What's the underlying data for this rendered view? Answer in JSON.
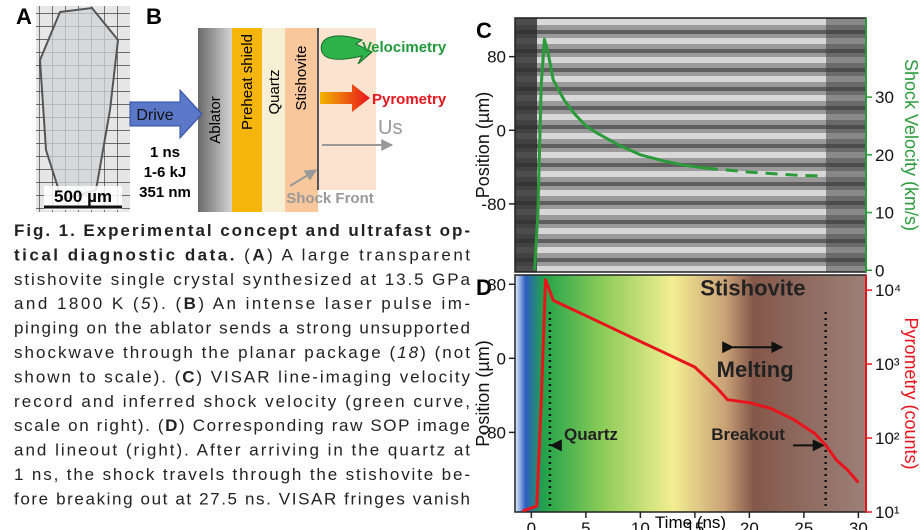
{
  "panel_a": {
    "label": "A",
    "scale_bar": "500 µm"
  },
  "panel_b": {
    "label": "B",
    "drive": "Drive",
    "drive_params": [
      "1 ns",
      "1-6 kJ",
      "351 nm"
    ],
    "layers": [
      "Ablator",
      "Preheat shield",
      "Quartz",
      "Stishovite"
    ],
    "velocimetry": "Velocimetry",
    "pyrometry": "Pyrometry",
    "us": "Us",
    "shock_front": "Shock Front"
  },
  "caption": {
    "lines": [
      [
        {
          "b": "Fig. 1. Experimental concept and ultrafast op-"
        }
      ],
      [
        {
          "b": "tical diagnostic data."
        },
        " (",
        {
          "b": "A"
        },
        ") A large transparent"
      ],
      [
        "stishovite single crystal synthesized at 13.5 GPa"
      ],
      [
        "and 1800 K (",
        {
          "i": "5"
        },
        "). (",
        {
          "b": "B"
        },
        ") An intense laser pulse im-"
      ],
      [
        "pinging on the ablator sends a strong unsupported"
      ],
      [
        "shockwave through the planar package (",
        {
          "i": "18"
        },
        ") (not"
      ],
      [
        "shown to scale). (",
        {
          "b": "C"
        },
        ") VISAR line-imaging velocity"
      ],
      [
        "record and inferred shock velocity (green curve,"
      ],
      [
        "scale on right). (",
        {
          "b": "D"
        },
        ") Corresponding raw SOP image"
      ],
      [
        "and lineout (right). After arriving in the quartz at"
      ],
      [
        "1 ns, the shock travels through the stishovite be-"
      ],
      [
        "fore breaking out at 27.5 ns. VISAR fringes vanish"
      ]
    ]
  },
  "chart_data": [
    {
      "type": "line",
      "panel": "C",
      "ylabel": "Position (µm)",
      "y2label": "Shock Velocity (km/s)",
      "xlim": [
        -1.5,
        30.7
      ],
      "ylim": [
        -154,
        122
      ],
      "yticks": [
        -80,
        0,
        80
      ],
      "y2lim": [
        -0.3,
        43.7
      ],
      "y2ticks": [
        0,
        10,
        20,
        30
      ],
      "y2color": "#2a9a3a",
      "series": [
        {
          "color": "#2a9a3a",
          "axis": "y2",
          "x": [
            0.3,
            0.6,
            0.9,
            1.2,
            1.5,
            2,
            3,
            4,
            5,
            6,
            8,
            10,
            12,
            14,
            16
          ],
          "values": [
            0,
            10,
            32,
            40,
            38,
            33,
            29.5,
            27,
            25,
            23.8,
            21.7,
            20,
            19,
            18.2,
            17.7
          ]
        },
        {
          "color": "#2a9a3a",
          "axis": "y2",
          "dashed": true,
          "x": [
            16,
            20,
            24,
            27
          ],
          "values": [
            17.7,
            17,
            16.5,
            16.3
          ]
        }
      ]
    },
    {
      "type": "line",
      "panel": "D",
      "ylabel": "Position (µm)",
      "y2label": "Pyrometry (counts)",
      "xlabel": "Time (ns)",
      "xlim": [
        -1.5,
        30.7
      ],
      "xticks": [
        0,
        5,
        10,
        15,
        20,
        25,
        30
      ],
      "ylim": [
        -166,
        90
      ],
      "yticks": [
        -80,
        0,
        80
      ],
      "y2lim": [
        10,
        16000
      ],
      "y2log": true,
      "y2color": "#e8141c",
      "y2ticks": [
        {
          "value": 10,
          "label": "10¹"
        },
        {
          "value": 100,
          "label": "10²"
        },
        {
          "value": 1000,
          "label": "10³"
        },
        {
          "value": 10000,
          "label": "10⁴"
        }
      ],
      "series": [
        {
          "color": "#e8141c",
          "axis": "y2",
          "x": [
            -0.8,
            0.5,
            0.9,
            1.3,
            2,
            3,
            5,
            8,
            10,
            12,
            15,
            17,
            18,
            20,
            22,
            24,
            26,
            27,
            28,
            29,
            30
          ],
          "values": [
            10.3,
            12,
            300,
            13800,
            7270,
            6190,
            4500,
            2780,
            2020,
            1470,
            910,
            480,
            330,
            300,
            250,
            180,
            115,
            80,
            50,
            37,
            25
          ]
        }
      ],
      "vlines": [
        1.7,
        27
      ],
      "annotations": {
        "stishovite": "Stishovite",
        "melting": "Melting",
        "quartz": "Quartz",
        "breakout": "Breakout"
      }
    }
  ]
}
